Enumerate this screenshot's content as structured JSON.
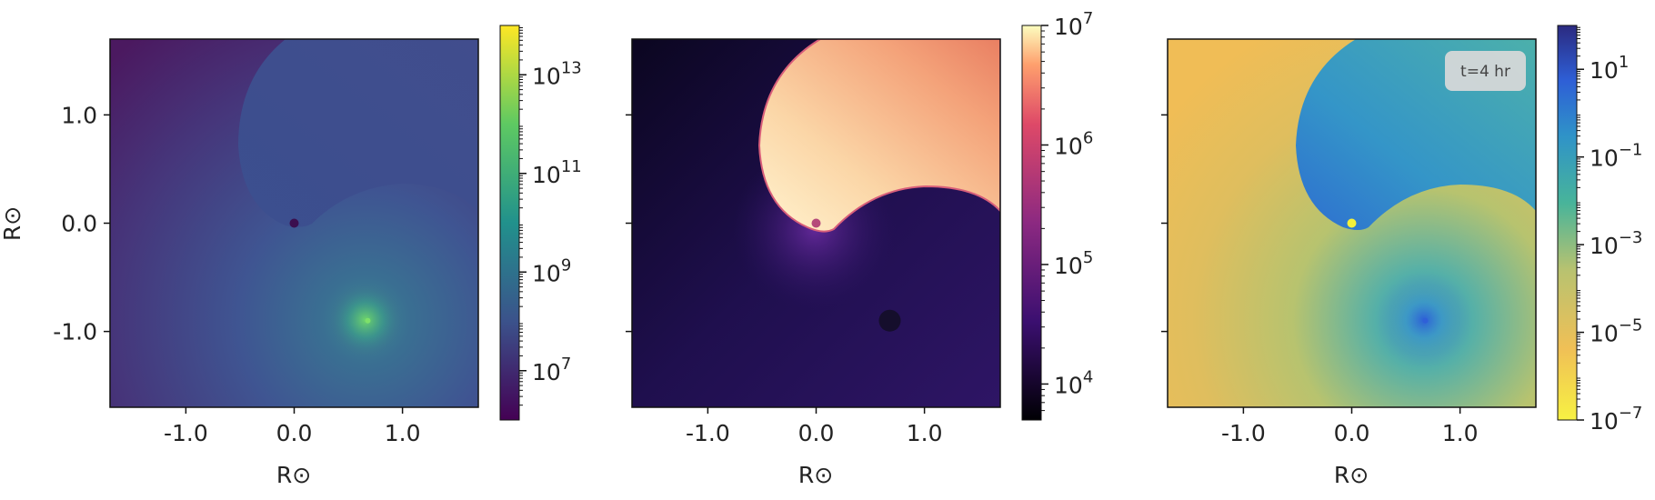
{
  "chart_data": [
    {
      "type": "heatmap",
      "title": "",
      "xlabel": "R⊙",
      "ylabel": "R⊙",
      "xlim": [
        -1.7,
        1.7
      ],
      "ylim": [
        -1.7,
        1.7
      ],
      "x_ticks": [
        "-1.0",
        "0.0",
        "1.0"
      ],
      "y_ticks": [
        "1.0",
        "0.0",
        "-1.0"
      ],
      "colormap": "viridis",
      "colorbar_scale": "log",
      "colorbar_range": [
        1000000.0,
        100000000000000.0
      ],
      "colorbar_ticks": [
        {
          "base": "10",
          "exp": "13"
        },
        {
          "base": "10",
          "exp": "11"
        },
        {
          "base": "10",
          "exp": "9"
        },
        {
          "base": "10",
          "exp": "7"
        }
      ],
      "markers": [
        {
          "x": 0.0,
          "y": 0.0,
          "color": "#3b0f4f"
        },
        {
          "x": 0.68,
          "y": -0.9,
          "color": "#7ee06a"
        }
      ]
    },
    {
      "type": "heatmap",
      "title": "",
      "xlabel": "R⊙",
      "ylabel": "",
      "xlim": [
        -1.7,
        1.7
      ],
      "ylim": [
        -1.7,
        1.7
      ],
      "x_ticks": [
        "-1.0",
        "0.0",
        "1.0"
      ],
      "colormap": "magma",
      "colorbar_scale": "log",
      "colorbar_range": [
        5000.0,
        10000000.0
      ],
      "colorbar_ticks": [
        {
          "base": "10",
          "exp": "7"
        },
        {
          "base": "10",
          "exp": "6"
        },
        {
          "base": "10",
          "exp": "5"
        },
        {
          "base": "10",
          "exp": "4"
        }
      ],
      "markers": [
        {
          "x": 0.0,
          "y": 0.0,
          "color": "#b5497a"
        },
        {
          "x": 0.68,
          "y": -0.9,
          "color": "#150e2c"
        }
      ]
    },
    {
      "type": "heatmap",
      "title": "",
      "xlabel": "R⊙",
      "ylabel": "",
      "xlim": [
        -1.7,
        1.7
      ],
      "ylim": [
        -1.7,
        1.7
      ],
      "x_ticks": [
        "-1.0",
        "0.0",
        "1.0"
      ],
      "colormap": "yellow-green-blue",
      "colorbar_scale": "log",
      "colorbar_range": [
        1e-07,
        100.0
      ],
      "colorbar_ticks": [
        {
          "base": "10",
          "exp": "1"
        },
        {
          "base": "10",
          "exp": "−1"
        },
        {
          "base": "10",
          "exp": "−3"
        },
        {
          "base": "10",
          "exp": "−5"
        },
        {
          "base": "10",
          "exp": "−7"
        }
      ],
      "annotation": "t=4 hr",
      "markers": [
        {
          "x": 0.0,
          "y": 0.0,
          "color": "#f4f03a"
        },
        {
          "x": 0.68,
          "y": -0.9,
          "color": "#2f60d8"
        }
      ]
    }
  ]
}
